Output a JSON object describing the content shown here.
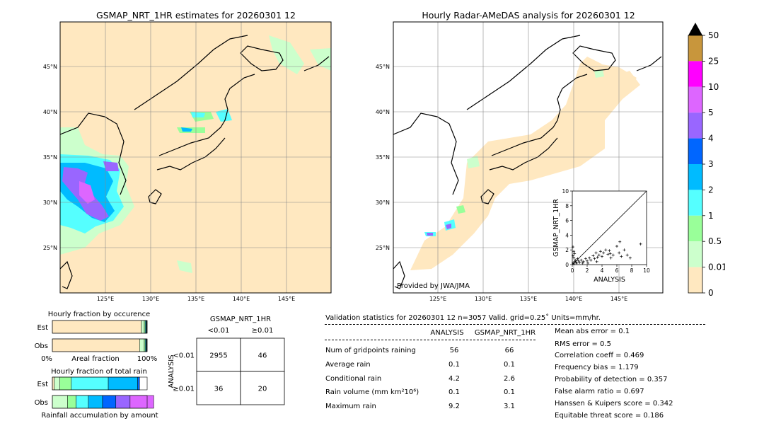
{
  "left_map": {
    "title": "GSMAP_NRT_1HR estimates for 20260301 12",
    "lat_ticks": [
      "45°N",
      "40°N",
      "35°N",
      "30°N",
      "25°N"
    ],
    "lon_ticks": [
      "125°E",
      "130°E",
      "135°E",
      "140°E",
      "145°E"
    ]
  },
  "right_map": {
    "title": "Hourly Radar-AMeDAS analysis for 20260301 12",
    "lat_ticks": [
      "45°N",
      "40°N",
      "35°N",
      "30°N",
      "25°N"
    ],
    "lon_ticks": [
      "125°E",
      "130°E",
      "135°E",
      "140°E",
      "145°E"
    ],
    "credit": "Provided by JWA/JMA"
  },
  "colorbar": {
    "labels": [
      "50",
      "25",
      "10",
      "5",
      "4",
      "3",
      "2",
      "1",
      "0.5",
      "0.01",
      "0"
    ],
    "colors": [
      "#c8963c",
      "#ff00ff",
      "#dd66ff",
      "#9966ff",
      "#0066ff",
      "#00bbff",
      "#55ffff",
      "#99ff99",
      "#ccffcc",
      "#ffe8c0"
    ],
    "extend_color": "#000000"
  },
  "chart_data": [
    {
      "type": "scatter",
      "title": "",
      "xlabel": "ANALYSIS",
      "ylabel": "GSMAP_NRT_1HR",
      "xlim": [
        0,
        10
      ],
      "ylim": [
        0,
        10
      ],
      "x_ticks": [
        "0",
        "2",
        "4",
        "6",
        "8",
        "10"
      ],
      "y_ticks": [
        "0",
        "2",
        "4",
        "6",
        "8",
        "10"
      ],
      "diagonal": true,
      "points": [
        [
          0.1,
          0.2
        ],
        [
          0.2,
          0.1
        ],
        [
          0.3,
          0.4
        ],
        [
          0.1,
          2.4
        ],
        [
          0.2,
          1.8
        ],
        [
          0.1,
          1.2
        ],
        [
          0.3,
          1.5
        ],
        [
          0.4,
          0.6
        ],
        [
          0.5,
          0.3
        ],
        [
          0.6,
          0.2
        ],
        [
          0.8,
          0.5
        ],
        [
          1.0,
          0.3
        ],
        [
          1.2,
          0.6
        ],
        [
          1.5,
          0.4
        ],
        [
          1.8,
          0.8
        ],
        [
          2.0,
          0.5
        ],
        [
          2.3,
          0.9
        ],
        [
          2.5,
          0.6
        ],
        [
          2.8,
          1.2
        ],
        [
          3.0,
          0.8
        ],
        [
          3.2,
          1.6
        ],
        [
          3.4,
          1.0
        ],
        [
          3.6,
          1.3
        ],
        [
          3.8,
          1.8
        ],
        [
          4.0,
          1.1
        ],
        [
          4.2,
          1.6
        ],
        [
          4.5,
          2.0
        ],
        [
          4.8,
          1.4
        ],
        [
          5.0,
          1.9
        ],
        [
          5.2,
          0.9
        ],
        [
          5.5,
          1.3
        ],
        [
          6.0,
          2.5
        ],
        [
          6.3,
          1.6
        ],
        [
          6.6,
          1.1
        ],
        [
          7.0,
          2.0
        ],
        [
          7.4,
          1.3
        ],
        [
          7.8,
          0.9
        ],
        [
          9.2,
          2.8
        ],
        [
          6.4,
          3.1
        ],
        [
          5.1,
          1.5
        ],
        [
          1.4,
          0.2
        ],
        [
          0.7,
          0.8
        ],
        [
          2.1,
          0.2
        ],
        [
          3.3,
          0.4
        ],
        [
          0.2,
          0.9
        ]
      ]
    },
    {
      "type": "bar",
      "title": "Hourly fraction by occurence",
      "categories": [
        "Est",
        "Obs"
      ],
      "xlabel": "Areal fraction",
      "x_ticks": [
        "0%",
        "100%"
      ],
      "series": [
        {
          "values": [
            0.94,
            0.92
          ],
          "color": "#ffe8c0"
        },
        {
          "values": [
            0.03,
            0.05
          ],
          "color": "#ccffcc"
        },
        {
          "values": [
            0.01,
            0.01
          ],
          "color": "#99ff99"
        },
        {
          "values": [
            0.01,
            0.01
          ],
          "color": "#55ffff"
        },
        {
          "values": [
            0.01,
            0.01
          ],
          "color": "#000000"
        }
      ]
    },
    {
      "type": "bar",
      "title": "Hourly fraction of total rain",
      "categories": [
        "Est",
        "Obs"
      ],
      "xlabel": "Rainfall accumulation by amount",
      "series": [
        {
          "values": [
            0.02,
            0.0
          ],
          "color": "#ffe8c0"
        },
        {
          "values": [
            0.06,
            0.16
          ],
          "color": "#ccffcc"
        },
        {
          "values": [
            0.12,
            0.09
          ],
          "color": "#99ff99"
        },
        {
          "values": [
            0.39,
            0.13
          ],
          "color": "#55ffff"
        },
        {
          "values": [
            0.31,
            0.15
          ],
          "color": "#00bbff"
        },
        {
          "values": [
            0.02,
            0.14
          ],
          "color": "#0066ff"
        },
        {
          "values": [
            0.0,
            0.15
          ],
          "color": "#9966ff"
        },
        {
          "values": [
            0.0,
            0.25
          ],
          "color": "#dd66ff"
        }
      ]
    },
    {
      "type": "table",
      "title": "GSMAP_NRT_1HR",
      "col_labels": [
        "<0.01",
        "≥0.01"
      ],
      "row_axis_label": "ANALYSIS",
      "row_labels": [
        "<0.01",
        "≥0.01"
      ],
      "cells": [
        [
          "2955",
          "46"
        ],
        [
          "36",
          "20"
        ]
      ]
    }
  ],
  "stats": {
    "header": "Validation statistics for 20260301 12  n=3057 Valid. grid=0.25˚ Units=mm/hr.",
    "col_analysis": "ANALYSIS",
    "col_gsmap": "GSMAP_NRT_1HR",
    "rows": [
      {
        "label": "Num of gridpoints raining",
        "a": "56",
        "g": "66"
      },
      {
        "label": "Average rain",
        "a": "0.1",
        "g": "0.1"
      },
      {
        "label": "Conditional rain",
        "a": "4.2",
        "g": "2.6"
      },
      {
        "label": "Rain volume (mm km²10⁶)",
        "a": "0.1",
        "g": "0.1"
      },
      {
        "label": "Maximum rain",
        "a": "9.2",
        "g": "3.1"
      }
    ],
    "scores": [
      "Mean abs error =    0.1",
      "RMS error =    0.5",
      "Correlation coeff =  0.469",
      "Frequency bias =  1.179",
      "Probability of detection =  0.357",
      "False alarm ratio =  0.697",
      "Hanssen & Kuipers score =  0.342",
      "Equitable threat score =  0.186"
    ]
  }
}
